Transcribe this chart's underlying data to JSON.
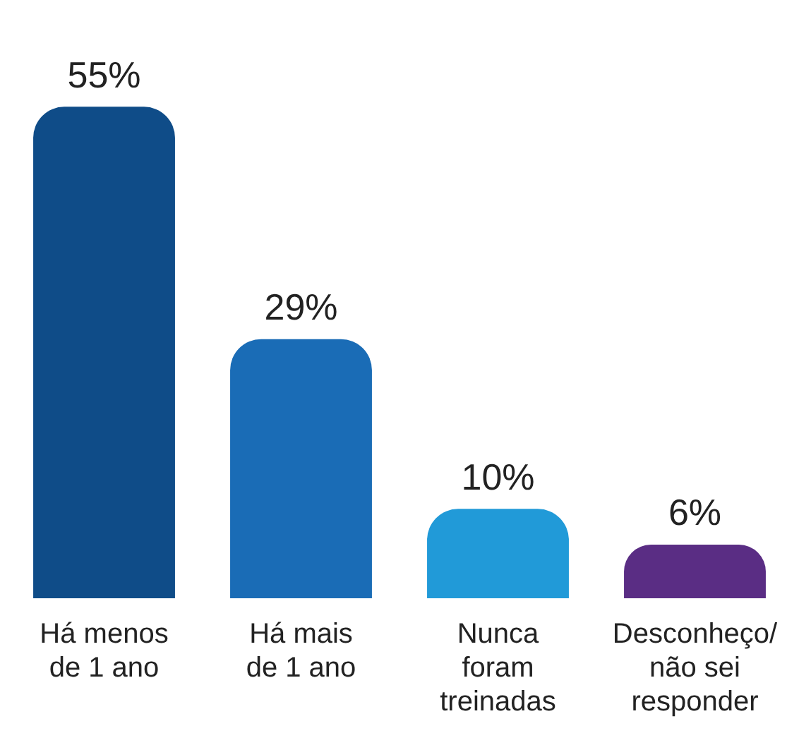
{
  "chart_data": {
    "type": "bar",
    "categories": [
      "Há menos de 1 ano",
      "Há mais de 1 ano",
      "Nunca foram treinadas",
      "Desconheço/ não sei responder"
    ],
    "values": [
      55,
      29,
      10,
      6
    ],
    "colors": [
      "#0f4c88",
      "#1a6cb6",
      "#219ad8",
      "#5a2d84"
    ],
    "value_labels": [
      "55%",
      "29%",
      "10%",
      "6%"
    ],
    "legend": false,
    "grid": false,
    "tick_labels": "x"
  }
}
